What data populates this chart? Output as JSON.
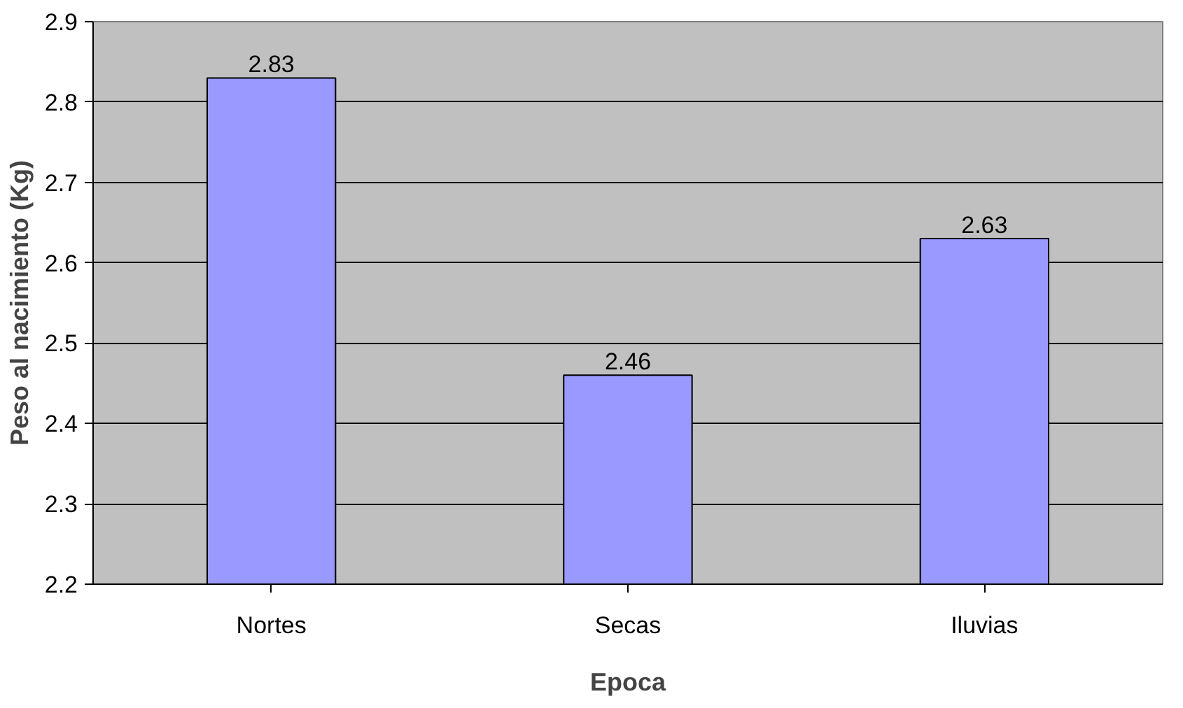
{
  "chart_data": {
    "type": "bar",
    "xlabel": "Epoca",
    "ylabel": "Peso al nacimiento (Kg)",
    "categories": [
      "Nortes",
      "Secas",
      "Iluvias"
    ],
    "values": [
      2.83,
      2.46,
      2.63
    ],
    "color": "#9999ff",
    "ylim": [
      2.2,
      2.9
    ],
    "yticks": [
      2.2,
      2.3,
      2.4,
      2.5,
      2.6,
      2.7,
      2.8,
      2.9
    ],
    "grid": "y",
    "data_labels": true
  }
}
